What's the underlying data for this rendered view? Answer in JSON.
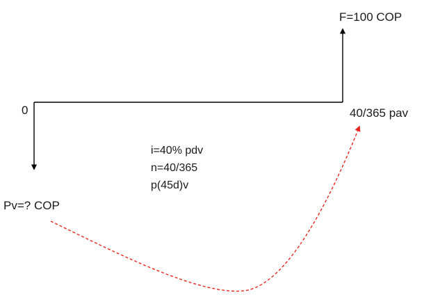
{
  "labels": {
    "future_value": "F=100 COP",
    "origin": "0",
    "end_period": "40/365 pav",
    "present_value": "Pv=? COP"
  },
  "parameters": {
    "rate": "i=40% pdv",
    "periods": "n=40/365",
    "note": "p(45d)v"
  },
  "colors": {
    "line": "#000000",
    "curve": "#e8261c",
    "text": "#1a1a1a"
  }
}
